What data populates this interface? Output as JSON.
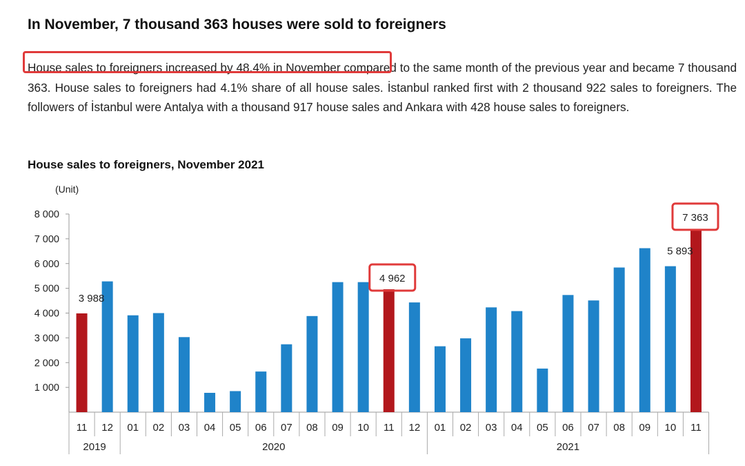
{
  "headline": "In November, 7 thousand 363 houses were sold to foreigners",
  "paragraph": {
    "highlighted": "House sales to foreigners increased by 48.4% in November",
    "rest": " compared to the same month of the previous year and became 7 thousand 363. House sales to foreigners had 4.1% share of all house sales. İstanbul ranked first with 2 thousand 922 sales to foreigners. The followers of İstanbul were Antalya with a thousand 917 house sales and Ankara with 428 house sales to foreigners."
  },
  "colors": {
    "bar_default": "#1f83c9",
    "bar_highlight": "#b2171c",
    "callout_border": "#e03a3a"
  },
  "chart_data": {
    "type": "bar",
    "title": "House sales to foreigners, November 2021",
    "unit_label": "(Unit)",
    "ylim": [
      0,
      8000
    ],
    "yticks": [
      1000,
      2000,
      3000,
      4000,
      5000,
      6000,
      7000,
      8000
    ],
    "ytick_labels": [
      "1 000",
      "2 000",
      "3 000",
      "4 000",
      "5 000",
      "6 000",
      "7 000",
      "8 000"
    ],
    "categories": [
      "11",
      "12",
      "01",
      "02",
      "03",
      "04",
      "05",
      "06",
      "07",
      "08",
      "09",
      "10",
      "11",
      "12",
      "01",
      "02",
      "03",
      "04",
      "05",
      "06",
      "07",
      "08",
      "09",
      "10",
      "11"
    ],
    "years": [
      {
        "label": "2019",
        "count": 2
      },
      {
        "label": "2020",
        "count": 12
      },
      {
        "label": "2021",
        "count": 11
      }
    ],
    "values": [
      3988,
      5280,
      3910,
      4000,
      3030,
      780,
      850,
      1640,
      2740,
      3880,
      5250,
      5250,
      4962,
      4430,
      2660,
      2980,
      4230,
      4080,
      1760,
      4730,
      4510,
      5840,
      6620,
      5893,
      7363
    ],
    "highlighted_indices": [
      0,
      12,
      24
    ],
    "data_labels": [
      {
        "index": 0,
        "text": "3 988",
        "boxed": false
      },
      {
        "index": 12,
        "text": "4 962",
        "boxed": true
      },
      {
        "index": 23,
        "text": "5 893",
        "boxed": false
      },
      {
        "index": 24,
        "text": "7 363",
        "boxed": true
      }
    ],
    "grid": false,
    "legend": "none"
  }
}
